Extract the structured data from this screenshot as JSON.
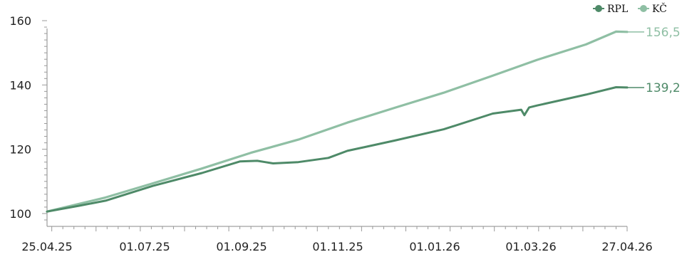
{
  "chart_data": {
    "type": "line",
    "title": "",
    "xlabel": "",
    "ylabel": "",
    "x_ticks": [
      "25.04.25",
      "01.07.25",
      "01.09.25",
      "01.11.25",
      "01.01.26",
      "01.03.26",
      "27.04.26"
    ],
    "x_range": [
      "2025-04-25",
      "2026-04-27"
    ],
    "ylim": [
      96,
      162
    ],
    "y_ticks": [
      "100",
      "120",
      "140",
      "160"
    ],
    "grid": false,
    "legend_position": "top-right",
    "series": [
      {
        "name": "RPL",
        "color": "#4e8a68",
        "end_label": "139,2",
        "points": [
          [
            "2025-04-25",
            100.6
          ],
          [
            "2025-05-15",
            102.4
          ],
          [
            "2025-06-01",
            104.0
          ],
          [
            "2025-07-01",
            108.6
          ],
          [
            "2025-08-01",
            112.6
          ],
          [
            "2025-08-25",
            116.2
          ],
          [
            "2025-09-05",
            116.4
          ],
          [
            "2025-09-10",
            116.0
          ],
          [
            "2025-09-15",
            115.6
          ],
          [
            "2025-10-01",
            116.0
          ],
          [
            "2025-10-20",
            117.3
          ],
          [
            "2025-11-01",
            119.5
          ],
          [
            "2025-12-01",
            122.7
          ],
          [
            "2026-01-01",
            126.2
          ],
          [
            "2026-02-01",
            131.1
          ],
          [
            "2026-02-19",
            132.3
          ],
          [
            "2026-02-21",
            130.6
          ],
          [
            "2026-02-24",
            133.0
          ],
          [
            "2026-03-01",
            133.6
          ],
          [
            "2026-04-01",
            137.0
          ],
          [
            "2026-04-20",
            139.3
          ],
          [
            "2026-04-27",
            139.2
          ]
        ]
      },
      {
        "name": "KČ",
        "color": "#8fbfa4",
        "end_label": "156,5",
        "points": [
          [
            "2025-04-25",
            100.6
          ],
          [
            "2025-06-01",
            105.0
          ],
          [
            "2025-07-01",
            109.4
          ],
          [
            "2025-08-01",
            114.0
          ],
          [
            "2025-09-01",
            118.9
          ],
          [
            "2025-10-01",
            123.0
          ],
          [
            "2025-11-01",
            128.3
          ],
          [
            "2025-12-01",
            132.9
          ],
          [
            "2026-01-01",
            137.6
          ],
          [
            "2026-02-01",
            142.9
          ],
          [
            "2026-03-01",
            147.8
          ],
          [
            "2026-04-01",
            152.6
          ],
          [
            "2026-04-20",
            156.6
          ],
          [
            "2026-04-27",
            156.5
          ]
        ]
      }
    ]
  }
}
